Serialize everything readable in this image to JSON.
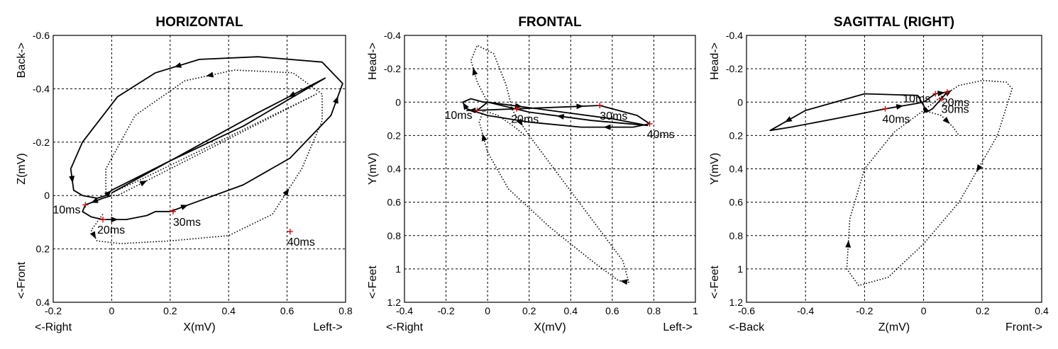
{
  "chart_data": [
    {
      "type": "line",
      "title": "HORIZONTAL",
      "xlabel": "X(mV)",
      "ylabel": "Z(mV)",
      "xlim": [
        -0.2,
        0.8
      ],
      "ylim": [
        -0.6,
        0.4
      ],
      "y_reversed": true,
      "xticks": [
        -0.2,
        0,
        0.2,
        0.4,
        0.6,
        0.8
      ],
      "yticks": [
        -0.6,
        -0.4,
        -0.2,
        0,
        0.2,
        0.4
      ],
      "xtick_labels": [
        "-0.2",
        "0",
        "0.2",
        "0.4",
        "0.6",
        "0.8"
      ],
      "ytick_labels": [
        "-0.6",
        "-0.4",
        "-0.2",
        "0",
        "0.2",
        "0.4"
      ],
      "grid": true,
      "direction_labels": {
        "x_low": "<-Right",
        "x_high": "Left->",
        "y_top": "Back->",
        "y_bottom": "<-Front"
      },
      "series": [
        {
          "style": "solid",
          "x": [
            0,
            -0.03,
            -0.09,
            -0.1,
            -0.07,
            -0.03,
            0.05,
            0.12,
            0.15,
            0.2,
            0.3,
            0.45,
            0.61,
            0.75,
            0.79,
            0.72,
            0.5,
            0.3,
            0.15,
            0.02,
            -0.1,
            -0.14,
            -0.13,
            -0.1,
            -0.05,
            -0.02,
            0.0,
            0.2,
            0.45,
            0.73,
            0.5,
            0.25,
            0.0
          ],
          "y": [
            0.0,
            0.01,
            0.035,
            0.06,
            0.08,
            0.09,
            0.09,
            0.075,
            0.06,
            0.06,
            0.02,
            -0.04,
            -0.14,
            -0.3,
            -0.42,
            -0.5,
            -0.52,
            -0.51,
            -0.46,
            -0.37,
            -0.2,
            -0.1,
            -0.02,
            0.0,
            0.01,
            0.0,
            -0.02,
            -0.13,
            -0.26,
            -0.44,
            -0.31,
            -0.16,
            -0.01
          ],
          "markers": [
            {
              "label": "10ms",
              "x": -0.09,
              "y": 0.035
            },
            {
              "label": "20ms",
              "x": -0.03,
              "y": 0.09
            },
            {
              "label": "30ms",
              "x": 0.21,
              "y": 0.06
            },
            {
              "label": "40ms",
              "x": 0.61,
              "y": 0.135
            }
          ]
        },
        {
          "style": "dotted",
          "x": [
            -0.03,
            -0.07,
            -0.05,
            0.03,
            0.2,
            0.4,
            0.55,
            0.65,
            0.72,
            0.72,
            0.62,
            0.42,
            0.25,
            0.08,
            -0.02,
            -0.02,
            0.02,
            0.2,
            0.45,
            0.7,
            0.4,
            0.1,
            -0.02
          ],
          "y": [
            0.07,
            0.13,
            0.17,
            0.18,
            0.17,
            0.15,
            0.07,
            -0.1,
            -0.28,
            -0.38,
            -0.46,
            -0.47,
            -0.43,
            -0.3,
            -0.1,
            0.0,
            0.0,
            -0.1,
            -0.24,
            -0.38,
            -0.22,
            -0.06,
            0.0
          ]
        }
      ]
    },
    {
      "type": "line",
      "title": "FRONTAL",
      "xlabel": "X(mV)",
      "ylabel": "Y(mV)",
      "xlim": [
        -0.4,
        1.0
      ],
      "ylim": [
        -0.4,
        1.2
      ],
      "y_reversed": true,
      "xticks": [
        -0.4,
        -0.2,
        0,
        0.2,
        0.4,
        0.6,
        0.8,
        1.0
      ],
      "yticks": [
        -0.4,
        -0.2,
        0,
        0.2,
        0.4,
        0.6,
        0.8,
        1.0,
        1.2
      ],
      "xtick_labels": [
        "-0.4",
        "-0.2",
        "0",
        "0.2",
        "0.4",
        "0.6",
        "0.8",
        "1"
      ],
      "ytick_labels": [
        "-0.4",
        "-0.2",
        "0",
        "0.2",
        "0.4",
        "0.6",
        "0.8",
        "1",
        "1.2"
      ],
      "grid": true,
      "direction_labels": {
        "x_low": "<-Right",
        "x_high": "Left->",
        "y_top": "Head->",
        "y_bottom": "<-Feet"
      },
      "series": [
        {
          "style": "solid",
          "x": [
            0.0,
            -0.05,
            -0.1,
            -0.06,
            0.14,
            0.35,
            0.54,
            0.72,
            0.78,
            0.7,
            0.45,
            0.2,
            0.0,
            -0.1,
            -0.12,
            -0.08,
            -0.02,
            0.0,
            0.3,
            0.6,
            0.77,
            0.5,
            0.2,
            0.0
          ],
          "y": [
            0.0,
            0.05,
            0.05,
            0.05,
            0.04,
            0.03,
            0.02,
            0.08,
            0.13,
            0.15,
            0.15,
            0.12,
            0.08,
            0.04,
            0.0,
            -0.02,
            0.0,
            0.0,
            0.05,
            0.1,
            0.14,
            0.11,
            0.06,
            0.0
          ]
        },
        {
          "style": "dotted",
          "x": [
            0.0,
            -0.05,
            -0.08,
            -0.05,
            0.03,
            0.09,
            0.12,
            0.2,
            0.35,
            0.5,
            0.65,
            0.68,
            0.63,
            0.5,
            0.3,
            0.1,
            0.0,
            -0.04,
            -0.02,
            0.05,
            0.12,
            0.18
          ],
          "y": [
            0.0,
            -0.12,
            -0.25,
            -0.34,
            -0.29,
            -0.1,
            0.05,
            0.2,
            0.45,
            0.7,
            0.95,
            1.08,
            1.07,
            0.95,
            0.75,
            0.52,
            0.3,
            0.12,
            0.05,
            0.08,
            0.14,
            0.2
          ]
        }
      ],
      "markers": [
        {
          "label": "10ms",
          "x": -0.05,
          "y": 0.05
        },
        {
          "label": "20ms",
          "x": 0.14,
          "y": 0.04
        },
        {
          "label": "30ms",
          "x": 0.54,
          "y": 0.02
        },
        {
          "label": "40ms",
          "x": 0.78,
          "y": 0.13
        }
      ]
    },
    {
      "type": "line",
      "title": "SAGITTAL (RIGHT)",
      "xlabel": "Z(mV)",
      "ylabel": "Y(mV)",
      "xlim": [
        -0.6,
        0.4
      ],
      "ylim": [
        -0.4,
        1.2
      ],
      "y_reversed": true,
      "xticks": [
        -0.6,
        -0.4,
        -0.2,
        0,
        0.2,
        0.4
      ],
      "yticks": [
        -0.4,
        -0.2,
        0,
        0.2,
        0.4,
        0.6,
        0.8,
        1.0,
        1.2
      ],
      "xtick_labels": [
        "-0.6",
        "-0.4",
        "-0.2",
        "0",
        "0.2",
        "0.4"
      ],
      "ytick_labels": [
        "-0.4",
        "-0.2",
        "0",
        "0.2",
        "0.4",
        "0.6",
        "0.8",
        "1",
        "1.2"
      ],
      "grid": true,
      "direction_labels": {
        "x_low": "<-Back",
        "x_high": "Front->",
        "y_top": "Head->",
        "y_bottom": "<-Feet"
      },
      "series": [
        {
          "style": "solid",
          "x": [
            0.0,
            0.04,
            0.08,
            0.06,
            0.03,
            0.01,
            0.0,
            -0.02,
            -0.2,
            -0.4,
            -0.52,
            -0.45,
            -0.3,
            -0.13,
            -0.03,
            0.0
          ],
          "y": [
            0.0,
            -0.05,
            -0.06,
            -0.02,
            0.04,
            0.06,
            0.02,
            -0.04,
            -0.05,
            0.05,
            0.17,
            0.15,
            0.1,
            0.04,
            0.01,
            0.0
          ],
          "markers": [
            {
              "label": "10ms",
              "x": 0.04,
              "y": -0.05
            },
            {
              "label": "20ms",
              "x": 0.08,
              "y": -0.06
            },
            {
              "label": "30ms",
              "x": 0.06,
              "y": -0.02
            },
            {
              "label": "40ms",
              "x": -0.13,
              "y": 0.04
            }
          ]
        },
        {
          "style": "dotted",
          "x": [
            0.0,
            0.05,
            0.12,
            0.2,
            0.28,
            0.3,
            0.25,
            0.12,
            0.0,
            -0.12,
            -0.22,
            -0.26,
            -0.25,
            -0.2,
            -0.1,
            0.0,
            0.06,
            0.1,
            0.12
          ],
          "y": [
            0.05,
            -0.02,
            -0.1,
            -0.13,
            -0.12,
            -0.08,
            0.2,
            0.6,
            0.85,
            1.05,
            1.1,
            1.0,
            0.7,
            0.4,
            0.18,
            0.05,
            0.08,
            0.15,
            0.2
          ]
        }
      ]
    }
  ]
}
